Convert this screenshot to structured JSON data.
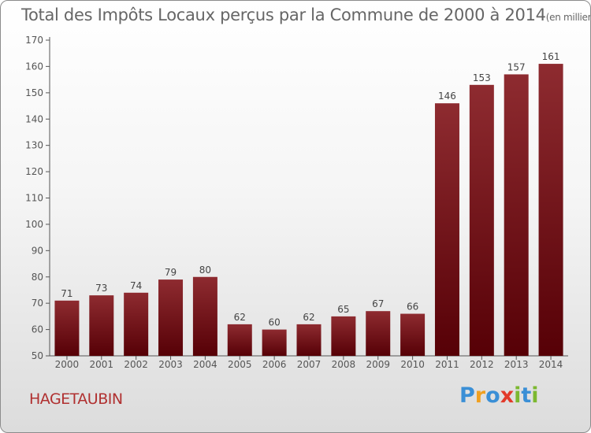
{
  "chart_data": {
    "type": "bar",
    "title": "Total des Impôts Locaux perçus par la Commune de 2000 à 2014",
    "subtitle": "(en milliers d'€)",
    "categories": [
      "2000",
      "2001",
      "2002",
      "2003",
      "2004",
      "2005",
      "2006",
      "2007",
      "2008",
      "2009",
      "2010",
      "2011",
      "2012",
      "2013",
      "2014"
    ],
    "values": [
      71,
      73,
      74,
      79,
      80,
      62,
      60,
      62,
      65,
      67,
      66,
      146,
      153,
      157,
      161
    ],
    "ylim": [
      50,
      170
    ],
    "yticks": [
      50,
      60,
      70,
      80,
      90,
      100,
      110,
      120,
      130,
      140,
      150,
      160,
      170
    ],
    "grid": false,
    "bar_color": "#7a1a1f"
  },
  "commune": "HAGETAUBIN",
  "logo": {
    "letters": [
      "P",
      "r",
      "o",
      "x",
      "i",
      "t",
      "i"
    ],
    "colors": [
      "#3a8fd6",
      "#f0a020",
      "#3a8fd6",
      "#e23a2a",
      "#7cb830",
      "#3a8fd6",
      "#7cb830"
    ]
  }
}
